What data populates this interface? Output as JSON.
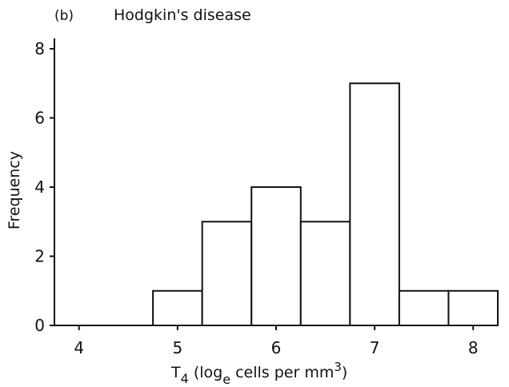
{
  "chart_data": {
    "type": "bar",
    "panel_label": "(b)",
    "title": "Hodgkin's disease",
    "xlabel": {
      "main": "T",
      "sub": "4",
      "pre": " (log",
      "sub2": "e",
      "post": " cells per mm",
      "sup": "3",
      "close": ")"
    },
    "ylabel": "Frequency",
    "xlim": [
      3.75,
      8.25
    ],
    "ylim": [
      0,
      8.3
    ],
    "xticks": [
      4,
      5,
      6,
      7,
      8
    ],
    "yticks": [
      0,
      2,
      4,
      6,
      8
    ],
    "bin_edges": [
      4.75,
      5.25,
      5.75,
      6.25,
      6.75,
      7.25,
      7.75,
      8.25
    ],
    "values": [
      1,
      3,
      4,
      3,
      7,
      1,
      1
    ],
    "grid": false,
    "legend": "none"
  }
}
